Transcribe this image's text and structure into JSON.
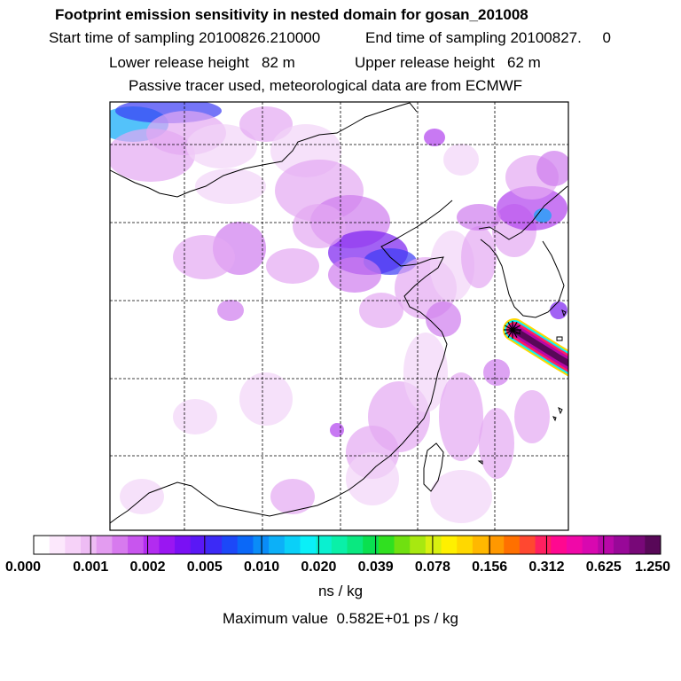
{
  "title": "Footprint emission sensitivity in nested domain for gosan_201008",
  "start_label": "Start time of sampling 20100826.210000",
  "end_label": "End time of sampling 20100827.     0",
  "lower_label": "Lower release height   82 m",
  "upper_label": "Upper release height   62 m",
  "tracer_note": "Passive tracer used, meteorological data are from ECMWF",
  "colorbar": {
    "ticks": [
      "0.000",
      "0.001",
      "0.002",
      "0.005",
      "0.010",
      "0.020",
      "0.039",
      "0.078",
      "0.156",
      "0.312",
      "0.625",
      "1.250"
    ],
    "colors": [
      "#ffffff",
      "#fce8fc",
      "#f6d2f8",
      "#eebcf4",
      "#e39cf0",
      "#d77aee",
      "#c855ee",
      "#b22cf0",
      "#9a16f2",
      "#7a10f4",
      "#5a18f6",
      "#3c2af6",
      "#1c48f8",
      "#0a68f8",
      "#0a8cf8",
      "#0cb0f8",
      "#0ad0f8",
      "#0af0f8",
      "#0af0d0",
      "#0af0a8",
      "#0ae880",
      "#0ae050",
      "#30e020",
      "#70e010",
      "#a8e810",
      "#d8f010",
      "#fff000",
      "#ffd800",
      "#ffb800",
      "#ff9800",
      "#ff7000",
      "#ff4830",
      "#ff2060",
      "#ff0890",
      "#f008a8",
      "#d808b0",
      "#b808a8",
      "#980898",
      "#780878",
      "#580858"
    ],
    "unit": "ns / kg"
  },
  "max_value": "Maximum value  0.582E+01 ps / kg",
  "map": {
    "receptor": "gosan",
    "plume_colors": [
      "#ffd800",
      "#0af0f8",
      "#ff2060",
      "#b808a8",
      "#580858"
    ],
    "patch_colors": [
      "#f2d4f8",
      "#e4a8f2",
      "#cf7cee",
      "#b040ee",
      "#7a20f0",
      "#3a3af4",
      "#0aa8f8"
    ]
  }
}
